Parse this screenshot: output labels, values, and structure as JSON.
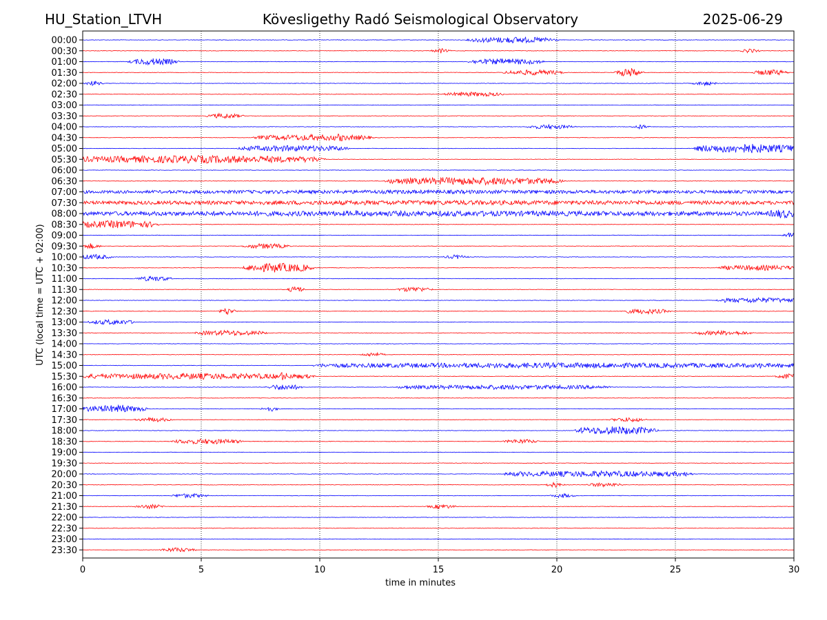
{
  "chart_data": {
    "type": "line",
    "title_left": "HU_Station_LTVH",
    "title": "Kövesligethy Radó Seismological Observatory",
    "title_right": "2025-06-29",
    "xlabel": "time in minutes",
    "ylabel": "UTC (local time = UTC + 02:00)",
    "xlim": [
      0,
      30
    ],
    "x_ticks": [
      0,
      5,
      10,
      15,
      20,
      25,
      30
    ],
    "grid": "vertical dotted lines at x ticks",
    "line_colors": [
      "#0000ff",
      "#ff0000"
    ],
    "rows": [
      {
        "label": "00:00",
        "bursts": [
          [
            16.5,
            19.8,
            0.6
          ]
        ]
      },
      {
        "label": "00:30",
        "bursts": [
          [
            15.1,
            15.1,
            0.5
          ],
          [
            28.1,
            28.2,
            0.5
          ]
        ]
      },
      {
        "label": "01:00",
        "bursts": [
          [
            2.2,
            3.8,
            0.7
          ],
          [
            16.5,
            19.2,
            0.6
          ]
        ]
      },
      {
        "label": "01:30",
        "bursts": [
          [
            18.0,
            20.0,
            0.5
          ],
          [
            22.7,
            23.4,
            1.0
          ],
          [
            28.5,
            29.5,
            0.6
          ]
        ]
      },
      {
        "label": "02:00",
        "bursts": [
          [
            0.3,
            0.6,
            0.5
          ],
          [
            26.0,
            26.5,
            0.4
          ]
        ]
      },
      {
        "label": "02:30",
        "bursts": [
          [
            15.5,
            17.5,
            0.4
          ]
        ]
      },
      {
        "label": "03:00",
        "bursts": []
      },
      {
        "label": "03:30",
        "bursts": [
          [
            5.5,
            6.5,
            0.5
          ]
        ]
      },
      {
        "label": "04:00",
        "bursts": [
          [
            19.0,
            20.5,
            0.4
          ],
          [
            23.5,
            23.6,
            0.5
          ]
        ]
      },
      {
        "label": "04:30",
        "bursts": [
          [
            7.5,
            12.0,
            0.6
          ],
          [
            10.7,
            11.0,
            0.9
          ]
        ]
      },
      {
        "label": "05:00",
        "bursts": [
          [
            6.8,
            11.0,
            0.6
          ],
          [
            26.0,
            30.0,
            1.0
          ]
        ]
      },
      {
        "label": "05:30",
        "bursts": [
          [
            0.0,
            10.0,
            0.8
          ]
        ]
      },
      {
        "label": "06:00",
        "bursts": []
      },
      {
        "label": "06:30",
        "bursts": [
          [
            13.0,
            20.0,
            0.8
          ],
          [
            15.1,
            15.4,
            1.0
          ]
        ]
      },
      {
        "label": "07:00",
        "bursts": [
          [
            0.0,
            30.0,
            0.3
          ]
        ]
      },
      {
        "label": "07:30",
        "bursts": [
          [
            0.0,
            30.0,
            0.4
          ],
          [
            23.5,
            23.6,
            0.7
          ]
        ]
      },
      {
        "label": "08:00",
        "bursts": [
          [
            0.0,
            30.0,
            0.5
          ],
          [
            11.5,
            11.6,
            0.7
          ],
          [
            29.0,
            30.0,
            1.0
          ]
        ]
      },
      {
        "label": "08:30",
        "bursts": [
          [
            0.0,
            3.0,
            0.8
          ]
        ]
      },
      {
        "label": "09:00",
        "bursts": [
          [
            29.8,
            30.0,
            0.7
          ]
        ]
      },
      {
        "label": "09:30",
        "bursts": [
          [
            0.2,
            0.5,
            0.6
          ],
          [
            7.0,
            8.5,
            0.5
          ]
        ]
      },
      {
        "label": "10:00",
        "bursts": [
          [
            0.0,
            1.0,
            0.5
          ],
          [
            15.5,
            16.0,
            0.4
          ]
        ]
      },
      {
        "label": "10:30",
        "bursts": [
          [
            7.0,
            9.5,
            1.0
          ],
          [
            27.0,
            30.0,
            0.5
          ]
        ]
      },
      {
        "label": "11:00",
        "bursts": [
          [
            2.5,
            3.5,
            0.5
          ]
        ]
      },
      {
        "label": "11:30",
        "bursts": [
          [
            8.9,
            9.1,
            1.0
          ],
          [
            13.5,
            14.5,
            0.5
          ]
        ]
      },
      {
        "label": "12:00",
        "bursts": [
          [
            27.0,
            30.0,
            0.5
          ]
        ]
      },
      {
        "label": "12:30",
        "bursts": [
          [
            6.0,
            6.2,
            0.8
          ],
          [
            23.0,
            24.5,
            0.5
          ]
        ]
      },
      {
        "label": "13:00",
        "bursts": [
          [
            0.5,
            2.0,
            0.5
          ]
        ]
      },
      {
        "label": "13:30",
        "bursts": [
          [
            5.0,
            7.5,
            0.5
          ],
          [
            26.0,
            28.0,
            0.4
          ]
        ]
      },
      {
        "label": "14:00",
        "bursts": []
      },
      {
        "label": "14:30",
        "bursts": [
          [
            12.0,
            12.5,
            0.4
          ]
        ]
      },
      {
        "label": "15:00",
        "bursts": [
          [
            10.0,
            30.0,
            0.5
          ],
          [
            28.5,
            28.7,
            0.6
          ]
        ]
      },
      {
        "label": "15:30",
        "bursts": [
          [
            0.0,
            9.5,
            0.6
          ],
          [
            8.3,
            8.6,
            1.0
          ],
          [
            29.5,
            30.0,
            0.6
          ]
        ]
      },
      {
        "label": "16:00",
        "bursts": [
          [
            8.0,
            9.0,
            0.6
          ],
          [
            13.5,
            22.0,
            0.4
          ]
        ]
      },
      {
        "label": "16:30",
        "bursts": []
      },
      {
        "label": "17:00",
        "bursts": [
          [
            0.0,
            2.5,
            0.7
          ],
          [
            1.5,
            1.8,
            1.2
          ],
          [
            7.8,
            8.0,
            0.6
          ]
        ]
      },
      {
        "label": "17:30",
        "bursts": [
          [
            2.5,
            3.5,
            0.4
          ],
          [
            22.5,
            23.5,
            0.4
          ]
        ]
      },
      {
        "label": "18:00",
        "bursts": [
          [
            21.0,
            24.0,
            0.9
          ]
        ]
      },
      {
        "label": "18:30",
        "bursts": [
          [
            4.0,
            6.5,
            0.5
          ],
          [
            18.0,
            19.0,
            0.4
          ]
        ]
      },
      {
        "label": "19:00",
        "bursts": []
      },
      {
        "label": "19:30",
        "bursts": []
      },
      {
        "label": "20:00",
        "bursts": [
          [
            18.0,
            25.5,
            0.6
          ]
        ]
      },
      {
        "label": "20:30",
        "bursts": [
          [
            19.8,
            20.0,
            0.6
          ],
          [
            21.5,
            22.5,
            0.4
          ]
        ]
      },
      {
        "label": "21:00",
        "bursts": [
          [
            4.0,
            5.0,
            0.4
          ],
          [
            20.0,
            20.5,
            0.4
          ]
        ]
      },
      {
        "label": "21:30",
        "bursts": [
          [
            2.5,
            3.2,
            0.4
          ],
          [
            14.8,
            15.5,
            0.4
          ]
        ]
      },
      {
        "label": "22:00",
        "bursts": []
      },
      {
        "label": "22:30",
        "bursts": []
      },
      {
        "label": "23:00",
        "bursts": []
      },
      {
        "label": "23:30",
        "bursts": [
          [
            3.5,
            4.5,
            0.4
          ]
        ]
      }
    ]
  }
}
